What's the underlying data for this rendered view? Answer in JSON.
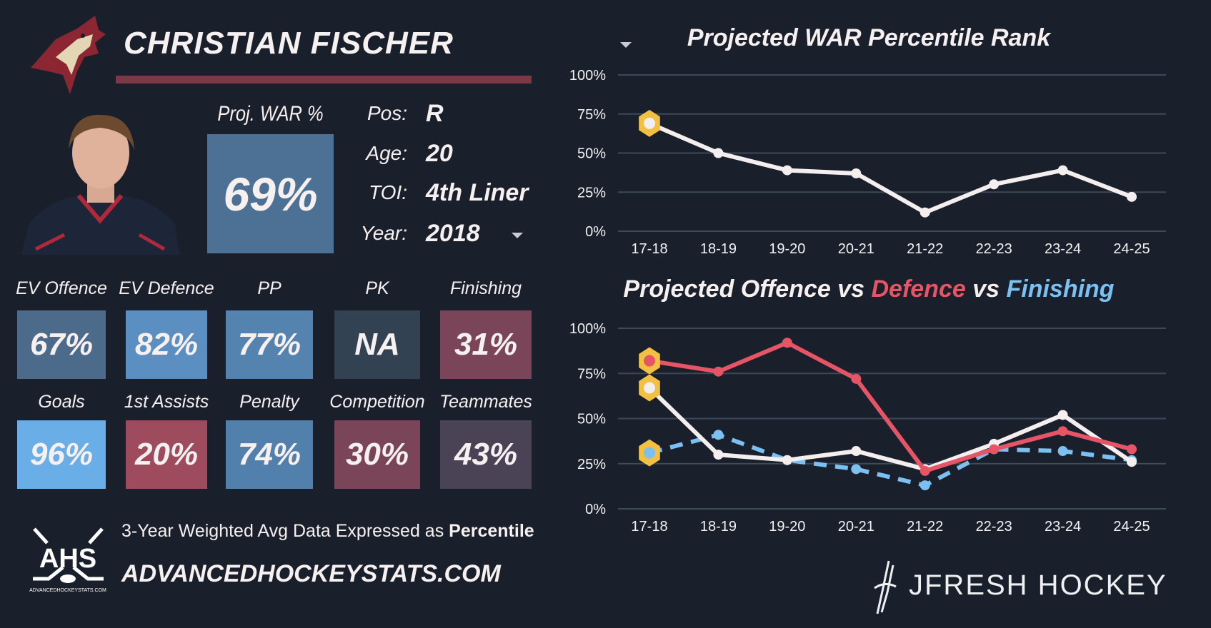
{
  "player": {
    "name": "CHRISTIAN FISCHER"
  },
  "war": {
    "label": "Proj. WAR %",
    "value": "69%"
  },
  "info": [
    {
      "label": "Pos:",
      "value": "R"
    },
    {
      "label": "Age:",
      "value": "20"
    },
    {
      "label": "TOI:",
      "value": "4th Liner"
    },
    {
      "label": "Year:",
      "value": "2018"
    }
  ],
  "tiles": [
    {
      "label": "EV Offence",
      "value": "67%",
      "color": "#4c6b8a"
    },
    {
      "label": "EV Defence",
      "value": "82%",
      "color": "#5b8fc2"
    },
    {
      "label": "PP",
      "value": "77%",
      "color": "#5583b0"
    },
    {
      "label": "PK",
      "value": "NA",
      "color": "#334252"
    },
    {
      "label": "Finishing",
      "value": "31%",
      "color": "#7a4558"
    },
    {
      "label": "Goals",
      "value": "96%",
      "color": "#6aaee8"
    },
    {
      "label": "1st Assists",
      "value": "20%",
      "color": "#9e4b5e"
    },
    {
      "label": "Penalty",
      "value": "74%",
      "color": "#5080ab"
    },
    {
      "label": "Competition",
      "value": "30%",
      "color": "#7a4558"
    },
    {
      "label": "Teammates",
      "value": "43%",
      "color": "#4a4356"
    }
  ],
  "footer": {
    "note": "3-Year Weighted Avg Data Expressed as ",
    "note_bold": "Percentile",
    "site": "ADVANCEDHOCKEYSTATS.COM",
    "ahs_logo": "AHS",
    "ahs_logo_small": "ADVANCEDHOCKEYSTATS.COM",
    "brand": "JFRESH HOCKEY"
  },
  "chart_data": [
    {
      "type": "line",
      "title": "Projected WAR Percentile Rank",
      "categories": [
        "17-18",
        "18-19",
        "19-20",
        "20-21",
        "21-22",
        "22-23",
        "23-24",
        "24-25"
      ],
      "yticks": [
        "0%",
        "25%",
        "50%",
        "75%",
        "100%"
      ],
      "ylim": [
        0,
        100
      ],
      "grid": true,
      "highlight_index": 0,
      "series": [
        {
          "values": [
            69,
            50,
            39,
            37,
            12,
            30,
            39,
            22
          ],
          "color": "#f5eeee",
          "dash": false
        }
      ]
    },
    {
      "type": "line",
      "title_parts": [
        {
          "text": "Projected Offence vs ",
          "color": "#f7f0f0"
        },
        {
          "text": "Defence",
          "color": "#e65566"
        },
        {
          "text": " vs ",
          "color": "#f7f0f0"
        },
        {
          "text": "Finishing",
          "color": "#7cc0f2"
        }
      ],
      "categories": [
        "17-18",
        "18-19",
        "19-20",
        "20-21",
        "21-22",
        "22-23",
        "23-24",
        "24-25"
      ],
      "yticks": [
        "0%",
        "25%",
        "50%",
        "75%",
        "100%"
      ],
      "ylim": [
        0,
        100
      ],
      "grid": true,
      "highlight_index": 0,
      "series": [
        {
          "name": "Finishing",
          "values": [
            31,
            41,
            27,
            22,
            13,
            33,
            32,
            27
          ],
          "color": "#7cc0f2",
          "dash": true
        },
        {
          "name": "Offence",
          "values": [
            67,
            30,
            27,
            32,
            22,
            36,
            52,
            26
          ],
          "color": "#f5eeee",
          "dash": false
        },
        {
          "name": "Defence",
          "values": [
            82,
            76,
            92,
            72,
            21,
            33,
            43,
            33
          ],
          "color": "#e65566",
          "dash": false
        }
      ]
    }
  ]
}
